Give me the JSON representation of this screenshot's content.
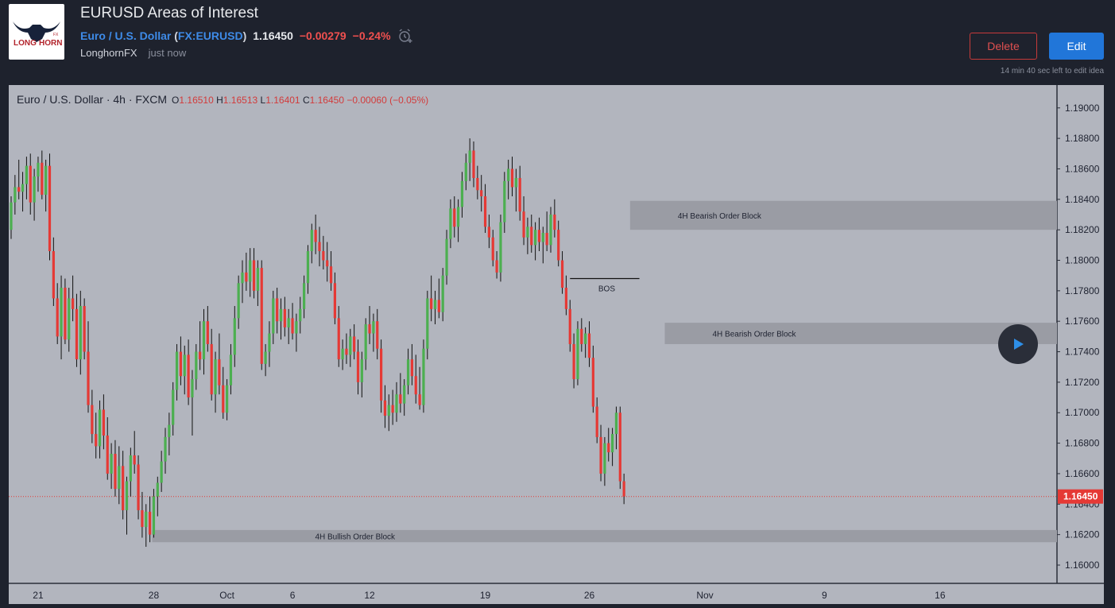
{
  "header": {
    "title": "EURUSD Areas of Interest",
    "symbol_name": "Euro / U.S. Dollar",
    "symbol_ticker": "FX:EURUSD",
    "price": "1.16450",
    "change": "−0.00279",
    "change_pct": "−0.24%",
    "author": "LonghornFX",
    "time": "just now",
    "logo_text_left": "LONG",
    "logo_text_right": "HORN",
    "logo_text_small": "FX",
    "delete_label": "Delete",
    "edit_label": "Edit",
    "edit_note": "14 min 40 sec left to edit idea"
  },
  "legend": {
    "title": "Euro / U.S. Dollar · 4h · FXCM",
    "o_label": "O",
    "o": "1.16510",
    "h_label": "H",
    "h": "1.16513",
    "l_label": "L",
    "l": "1.16401",
    "c_label": "C",
    "c": "1.16450",
    "change": "−0.00060 (−0.05%)"
  },
  "icons": {
    "alarm": "alarm-clock-plus-icon",
    "play": "play-icon"
  },
  "colors": {
    "up": "#4caf50",
    "down": "#e53935",
    "chart_bg": "#b2b5be",
    "zone": "#9a9ca4",
    "price_tag": "#e53935"
  },
  "chart_data": {
    "type": "candlestick",
    "timeframe": "4h",
    "last_price": 1.1645,
    "ylim": [
      1.1588,
      1.1915
    ],
    "yticks": [
      "1.19000",
      "1.18800",
      "1.18600",
      "1.18400",
      "1.18200",
      "1.18000",
      "1.17800",
      "1.17600",
      "1.17400",
      "1.17200",
      "1.17000",
      "1.16800",
      "1.16600",
      "1.16400",
      "1.16200",
      "1.16000"
    ],
    "ytick_values": [
      1.19,
      1.188,
      1.186,
      1.184,
      1.182,
      1.18,
      1.178,
      1.176,
      1.174,
      1.172,
      1.17,
      1.168,
      1.166,
      1.164,
      1.162,
      1.16
    ],
    "xticks": [
      "21",
      "28",
      "Oct",
      "6",
      "12",
      "19",
      "26",
      "Nov",
      "9",
      "16"
    ],
    "xtick_index": [
      7,
      37,
      56,
      73,
      93,
      123,
      150,
      180,
      211,
      241
    ],
    "last_price_label": "1.16450",
    "candles": [
      [
        1.182,
        1.1842,
        1.1814,
        1.1838
      ],
      [
        1.1838,
        1.1856,
        1.183,
        1.1848
      ],
      [
        1.1848,
        1.1866,
        1.184,
        1.1845
      ],
      [
        1.1845,
        1.1858,
        1.1832,
        1.185
      ],
      [
        1.185,
        1.1868,
        1.184,
        1.1862
      ],
      [
        1.1862,
        1.187,
        1.183,
        1.1838
      ],
      [
        1.1838,
        1.186,
        1.1826,
        1.1855
      ],
      [
        1.1855,
        1.1868,
        1.1845,
        1.1864
      ],
      [
        1.1864,
        1.1872,
        1.184,
        1.1843
      ],
      [
        1.1843,
        1.1866,
        1.1832,
        1.1862
      ],
      [
        1.1862,
        1.187,
        1.18,
        1.1806
      ],
      [
        1.1806,
        1.1815,
        1.177,
        1.1775
      ],
      [
        1.1775,
        1.1785,
        1.1745,
        1.175
      ],
      [
        1.175,
        1.179,
        1.1735,
        1.1782
      ],
      [
        1.1782,
        1.1788,
        1.1745,
        1.1748
      ],
      [
        1.1748,
        1.1782,
        1.174,
        1.1775
      ],
      [
        1.1775,
        1.179,
        1.176,
        1.1768
      ],
      [
        1.1768,
        1.1778,
        1.173,
        1.1735
      ],
      [
        1.1735,
        1.178,
        1.1725,
        1.177
      ],
      [
        1.177,
        1.1775,
        1.1735,
        1.174
      ],
      [
        1.174,
        1.176,
        1.17,
        1.1705
      ],
      [
        1.1705,
        1.1715,
        1.168,
        1.1686
      ],
      [
        1.1686,
        1.17,
        1.167,
        1.1678
      ],
      [
        1.1678,
        1.1708,
        1.167,
        1.1702
      ],
      [
        1.1702,
        1.1712,
        1.1676,
        1.1685
      ],
      [
        1.1685,
        1.1697,
        1.1656,
        1.166
      ],
      [
        1.166,
        1.168,
        1.165,
        1.1673
      ],
      [
        1.1673,
        1.1682,
        1.1645,
        1.165
      ],
      [
        1.165,
        1.1678,
        1.164,
        1.1665
      ],
      [
        1.1665,
        1.1675,
        1.163,
        1.1636
      ],
      [
        1.1636,
        1.1658,
        1.162,
        1.1655
      ],
      [
        1.1655,
        1.1677,
        1.1645,
        1.1672
      ],
      [
        1.1672,
        1.1688,
        1.166,
        1.1666
      ],
      [
        1.1666,
        1.1672,
        1.163,
        1.1636
      ],
      [
        1.1636,
        1.1648,
        1.1618,
        1.1625
      ],
      [
        1.1625,
        1.164,
        1.1612,
        1.1635
      ],
      [
        1.1635,
        1.1645,
        1.1615,
        1.162
      ],
      [
        1.162,
        1.165,
        1.1618,
        1.1645
      ],
      [
        1.1645,
        1.1658,
        1.1632,
        1.1654
      ],
      [
        1.1654,
        1.1675,
        1.1648,
        1.1668
      ],
      [
        1.1668,
        1.169,
        1.166,
        1.1684
      ],
      [
        1.1684,
        1.17,
        1.1672,
        1.1692
      ],
      [
        1.1692,
        1.172,
        1.1685,
        1.1715
      ],
      [
        1.1715,
        1.1745,
        1.1708,
        1.174
      ],
      [
        1.174,
        1.175,
        1.1718,
        1.1724
      ],
      [
        1.1724,
        1.1744,
        1.1712,
        1.1738
      ],
      [
        1.1738,
        1.1748,
        1.1705,
        1.171
      ],
      [
        1.171,
        1.1728,
        1.1685,
        1.1722
      ],
      [
        1.1722,
        1.1745,
        1.1715,
        1.174
      ],
      [
        1.174,
        1.176,
        1.1728,
        1.1735
      ],
      [
        1.1735,
        1.1768,
        1.1725,
        1.176
      ],
      [
        1.176,
        1.177,
        1.174,
        1.1745
      ],
      [
        1.1745,
        1.1755,
        1.1708,
        1.1712
      ],
      [
        1.1712,
        1.174,
        1.17,
        1.1735
      ],
      [
        1.1735,
        1.1752,
        1.1712,
        1.1718
      ],
      [
        1.1718,
        1.173,
        1.1696,
        1.17
      ],
      [
        1.17,
        1.1722,
        1.1695,
        1.1718
      ],
      [
        1.1718,
        1.1745,
        1.1712,
        1.1738
      ],
      [
        1.1738,
        1.177,
        1.173,
        1.1762
      ],
      [
        1.1762,
        1.179,
        1.1755,
        1.1785
      ],
      [
        1.1785,
        1.18,
        1.1772,
        1.1792
      ],
      [
        1.1792,
        1.1805,
        1.178,
        1.1786
      ],
      [
        1.1786,
        1.1808,
        1.1776,
        1.18
      ],
      [
        1.18,
        1.1808,
        1.1775,
        1.178
      ],
      [
        1.178,
        1.18,
        1.177,
        1.1795
      ],
      [
        1.1795,
        1.18,
        1.1728,
        1.1732
      ],
      [
        1.1732,
        1.1745,
        1.1724,
        1.174
      ],
      [
        1.174,
        1.176,
        1.173,
        1.1752
      ],
      [
        1.1752,
        1.178,
        1.1745,
        1.1775
      ],
      [
        1.1775,
        1.1782,
        1.1752,
        1.176
      ],
      [
        1.176,
        1.1775,
        1.1748,
        1.1768
      ],
      [
        1.1768,
        1.1776,
        1.175,
        1.1756
      ],
      [
        1.1756,
        1.1768,
        1.1745,
        1.1762
      ],
      [
        1.1762,
        1.1772,
        1.1748,
        1.1752
      ],
      [
        1.1752,
        1.1765,
        1.174,
        1.176
      ],
      [
        1.176,
        1.1776,
        1.1752,
        1.1768
      ],
      [
        1.1768,
        1.179,
        1.1762,
        1.1785
      ],
      [
        1.1785,
        1.181,
        1.1778,
        1.1806
      ],
      [
        1.1806,
        1.1824,
        1.1798,
        1.182
      ],
      [
        1.182,
        1.183,
        1.1804,
        1.1812
      ],
      [
        1.1812,
        1.1822,
        1.1796,
        1.1806
      ],
      [
        1.1806,
        1.1816,
        1.1794,
        1.18
      ],
      [
        1.18,
        1.1812,
        1.1786,
        1.1796
      ],
      [
        1.1796,
        1.1806,
        1.178,
        1.1785
      ],
      [
        1.1785,
        1.1792,
        1.1758,
        1.1762
      ],
      [
        1.1762,
        1.177,
        1.173,
        1.1735
      ],
      [
        1.1735,
        1.1748,
        1.1728,
        1.1742
      ],
      [
        1.1742,
        1.1752,
        1.1732,
        1.1738
      ],
      [
        1.1738,
        1.1755,
        1.173,
        1.175
      ],
      [
        1.175,
        1.1758,
        1.1735,
        1.174
      ],
      [
        1.174,
        1.1748,
        1.1712,
        1.172
      ],
      [
        1.172,
        1.174,
        1.171,
        1.1735
      ],
      [
        1.1735,
        1.1762,
        1.1728,
        1.1758
      ],
      [
        1.1758,
        1.177,
        1.1745,
        1.1752
      ],
      [
        1.1752,
        1.1765,
        1.174,
        1.176
      ],
      [
        1.176,
        1.1768,
        1.1735,
        1.1742
      ],
      [
        1.1742,
        1.1748,
        1.17,
        1.1708
      ],
      [
        1.1708,
        1.1718,
        1.169,
        1.1698
      ],
      [
        1.1698,
        1.1712,
        1.1688,
        1.1705
      ],
      [
        1.1705,
        1.1715,
        1.1692,
        1.17
      ],
      [
        1.17,
        1.172,
        1.1694,
        1.1712
      ],
      [
        1.1712,
        1.1726,
        1.17,
        1.1706
      ],
      [
        1.1706,
        1.1722,
        1.1698,
        1.1718
      ],
      [
        1.1718,
        1.1742,
        1.1712,
        1.1735
      ],
      [
        1.1735,
        1.1745,
        1.1718,
        1.1724
      ],
      [
        1.1724,
        1.1738,
        1.1706,
        1.1712
      ],
      [
        1.1712,
        1.173,
        1.1702,
        1.1705
      ],
      [
        1.1705,
        1.1748,
        1.17,
        1.1742
      ],
      [
        1.1742,
        1.178,
        1.1735,
        1.1775
      ],
      [
        1.1775,
        1.179,
        1.176,
        1.1768
      ],
      [
        1.1768,
        1.178,
        1.1758,
        1.1774
      ],
      [
        1.1774,
        1.1788,
        1.1762,
        1.1766
      ],
      [
        1.1766,
        1.1795,
        1.176,
        1.179
      ],
      [
        1.179,
        1.182,
        1.1784,
        1.1814
      ],
      [
        1.1814,
        1.184,
        1.1808,
        1.1834
      ],
      [
        1.1834,
        1.1842,
        1.1815,
        1.1822
      ],
      [
        1.1822,
        1.184,
        1.1812,
        1.1835
      ],
      [
        1.1835,
        1.1858,
        1.1828,
        1.1852
      ],
      [
        1.1852,
        1.187,
        1.1846,
        1.1864
      ],
      [
        1.1864,
        1.188,
        1.1852,
        1.1872
      ],
      [
        1.1872,
        1.1878,
        1.1848,
        1.1854
      ],
      [
        1.1854,
        1.1862,
        1.184,
        1.1846
      ],
      [
        1.1846,
        1.1856,
        1.1832,
        1.1842
      ],
      [
        1.1842,
        1.185,
        1.1818,
        1.1822
      ],
      [
        1.1822,
        1.183,
        1.1808,
        1.1815
      ],
      [
        1.1815,
        1.182,
        1.1796,
        1.18
      ],
      [
        1.18,
        1.1806,
        1.1788,
        1.1792
      ],
      [
        1.1792,
        1.183,
        1.1786,
        1.1825
      ],
      [
        1.1825,
        1.1858,
        1.1818,
        1.1852
      ],
      [
        1.1852,
        1.1866,
        1.184,
        1.186
      ],
      [
        1.186,
        1.1868,
        1.1842,
        1.1848
      ],
      [
        1.1848,
        1.186,
        1.1832,
        1.1854
      ],
      [
        1.1854,
        1.1862,
        1.1826,
        1.1832
      ],
      [
        1.1832,
        1.1842,
        1.181,
        1.1815
      ],
      [
        1.1815,
        1.1828,
        1.1804,
        1.1822
      ],
      [
        1.1822,
        1.183,
        1.1805,
        1.181
      ],
      [
        1.181,
        1.1825,
        1.18,
        1.182
      ],
      [
        1.182,
        1.1828,
        1.1806,
        1.1812
      ],
      [
        1.1812,
        1.1822,
        1.1798,
        1.1818
      ],
      [
        1.1818,
        1.1832,
        1.1806,
        1.181
      ],
      [
        1.181,
        1.1835,
        1.1805,
        1.183
      ],
      [
        1.183,
        1.184,
        1.1815,
        1.182
      ],
      [
        1.182,
        1.1826,
        1.1796,
        1.18
      ],
      [
        1.18,
        1.1806,
        1.1778,
        1.1782
      ],
      [
        1.1782,
        1.179,
        1.1764,
        1.1768
      ],
      [
        1.1768,
        1.1774,
        1.174,
        1.1745
      ],
      [
        1.1745,
        1.1752,
        1.1716,
        1.1722
      ],
      [
        1.1722,
        1.176,
        1.1718,
        1.1755
      ],
      [
        1.1755,
        1.1762,
        1.174,
        1.1745
      ],
      [
        1.1745,
        1.1756,
        1.1736,
        1.1752
      ],
      [
        1.1752,
        1.176,
        1.173,
        1.1736
      ],
      [
        1.1736,
        1.1744,
        1.17,
        1.1704
      ],
      [
        1.1704,
        1.171,
        1.168,
        1.1684
      ],
      [
        1.1684,
        1.1692,
        1.1655,
        1.166
      ],
      [
        1.166,
        1.1684,
        1.1652,
        1.168
      ],
      [
        1.168,
        1.169,
        1.1668,
        1.1674
      ],
      [
        1.1674,
        1.169,
        1.1665,
        1.1686
      ],
      [
        1.1686,
        1.1704,
        1.1676,
        1.17
      ],
      [
        1.17,
        1.1704,
        1.165,
        1.1655
      ],
      [
        1.1655,
        1.166,
        1.164,
        1.1645
      ]
    ],
    "zones": [
      {
        "label": "4H Bearish Order Block",
        "top": 1.1839,
        "bottom": 1.182,
        "start_index": 161
      },
      {
        "label": "4H Bearish Order Block",
        "top": 1.1759,
        "bottom": 1.1745,
        "start_index": 170
      },
      {
        "label": "4H Bullish Order Block",
        "top": 1.1623,
        "bottom": 1.1615,
        "start_index": 37
      }
    ],
    "bos": {
      "label": "BOS",
      "price": 1.1788,
      "start_index": 145,
      "end_index": 163
    }
  }
}
